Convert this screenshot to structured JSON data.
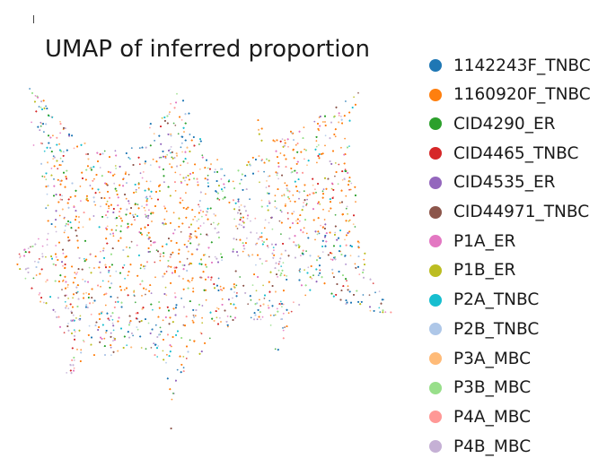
{
  "chart_data": {
    "type": "scatter",
    "title": "UMAP of inferred proportion",
    "xlabel": "",
    "ylabel": "",
    "grid": false,
    "axes_visible": false,
    "legend_position": "right",
    "marker_size": "tiny",
    "series": [
      {
        "name": "1142243F_TNBC",
        "color": "#1f77b4"
      },
      {
        "name": "1160920F_TNBC",
        "color": "#ff7f0e"
      },
      {
        "name": "CID4290_ER",
        "color": "#2ca02c"
      },
      {
        "name": "CID4465_TNBC",
        "color": "#d62728"
      },
      {
        "name": "CID4535_ER",
        "color": "#9467bd"
      },
      {
        "name": "CID44971_TNBC",
        "color": "#8c564b"
      },
      {
        "name": "P1A_ER",
        "color": "#e377c2"
      },
      {
        "name": "P1B_ER",
        "color": "#bcbd22"
      },
      {
        "name": "P2A_TNBC",
        "color": "#17becf"
      },
      {
        "name": "P2B_TNBC",
        "color": "#aec7e8"
      },
      {
        "name": "P3A_MBC",
        "color": "#ffbb78"
      },
      {
        "name": "P3B_MBC",
        "color": "#98df8a"
      },
      {
        "name": "P4A_MBC",
        "color": "#ff9896"
      },
      {
        "name": "P4B_MBC",
        "color": "#c5b0d5"
      }
    ]
  }
}
